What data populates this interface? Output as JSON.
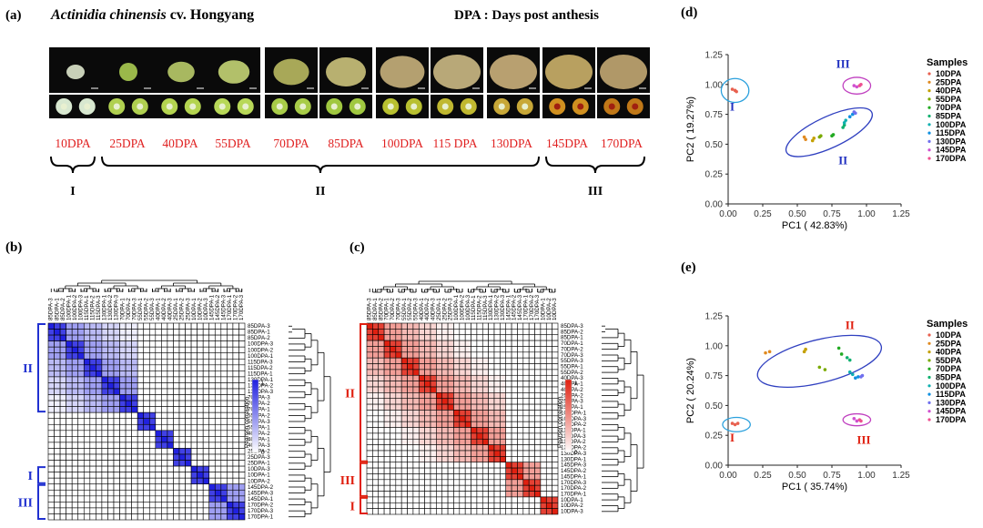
{
  "panels": {
    "a": {
      "label": "(a)",
      "title": "Actinidia chinensis",
      "cultivar": " cv. Hongyang",
      "dpa_note": "DPA : Days post anthesis",
      "stages": [
        "10DPA",
        "25DPA",
        "40DPA",
        "55DPA",
        "70DPA",
        "85DPA",
        "100DPA",
        "115 DPA",
        "130DPA",
        "145DPA",
        "170DPA"
      ],
      "groups": [
        "I",
        "II",
        "III"
      ]
    },
    "b": {
      "label": "(b)"
    },
    "c": {
      "label": "(c)"
    },
    "d": {
      "label": "(d)"
    },
    "e": {
      "label": "(e)"
    }
  },
  "heatmap_b": {
    "cols": [
      "85DPA-3",
      "85DPA-1",
      "85DPA-2",
      "100DPA-1",
      "100DPA-2",
      "100DPA-3",
      "115DPA-1",
      "115DPA-2",
      "115DPA-3",
      "130DPA-1",
      "130DPA-2",
      "130DPA-3",
      "70DPA-1",
      "70DPA-2",
      "70DPA-3",
      "55DPA-1",
      "55DPA-2",
      "55DPA-3",
      "40DPA-1",
      "40DPA-2",
      "40DPA-3",
      "25DPA-1",
      "25DPA-2",
      "25DPA-3",
      "10DPA-1",
      "10DPA-2",
      "10DPA-3",
      "145DPA-1",
      "145DPA-2",
      "145DPA-3",
      "170DPA-1",
      "170DPA-2",
      "170DPA-3"
    ],
    "rows": [
      "85DPA-3",
      "85DPA-1",
      "85DPA-2",
      "100DPA-3",
      "100DPA-2",
      "100DPA-1",
      "115DPA-3",
      "115DPA-2",
      "115DPA-1",
      "130DPA-1",
      "130DPA-2",
      "130DPA-3",
      "70DPA-3",
      "70DPA-2",
      "70DPA-1",
      "55DPA-2",
      "55DPA-3",
      "55DPA-1",
      "40DPA-2",
      "40DPA-1",
      "40DPA-3",
      "25DPA-2",
      "25DPA-3",
      "25DPA-1",
      "10DPA-3",
      "10DPA-1",
      "10DPA-2",
      "145DPA-2",
      "145DPA-3",
      "145DPA-1",
      "170DPA-2",
      "170DPA-3",
      "170DPA-1"
    ],
    "blocks": [
      [
        0,
        15,
        "II"
      ],
      [
        24,
        27,
        "I"
      ],
      [
        27,
        33,
        "III"
      ]
    ],
    "legend_title": "Pearson correlation",
    "legend_max": "1",
    "legend_min": "0",
    "color": "#2020e0"
  },
  "heatmap_c": {
    "cols": [
      "85DPA-3",
      "85DPA-1",
      "85DPA-2",
      "70DPA-1",
      "70DPA-2",
      "70DPA-3",
      "55DPA-1",
      "55DPA-2",
      "55DPA-3",
      "40DPA-1",
      "40DPA-2",
      "40DPA-3",
      "25DPA-1",
      "25DPA-2",
      "25DPA-3",
      "100DPA-1",
      "100DPA-2",
      "100DPA-3",
      "115DPA-1",
      "115DPA-2",
      "115DPA-3",
      "130DPA-1",
      "130DPA-2",
      "130DPA-3",
      "145DPA-1",
      "145DPA-2",
      "145DPA-3",
      "170DPA-1",
      "170DPA-2",
      "170DPA-3",
      "10DPA-1",
      "10DPA-2",
      "10DPA-3"
    ],
    "rows": [
      "85DPA-3",
      "85DPA-2",
      "85DPA-1",
      "70DPA-1",
      "70DPA-2",
      "70DPA-3",
      "55DPA-3",
      "55DPA-1",
      "55DPA-2",
      "40DPA-3",
      "40DPA-1",
      "40DPA-2",
      "25DPA-2",
      "25DPA-3",
      "25DPA-1",
      "100DPA-1",
      "100DPA-3",
      "100DPA-2",
      "115DPA-1",
      "115DPA-3",
      "115DPA-2",
      "130DPA-2",
      "130DPA-3",
      "130DPA-1",
      "145DPA-3",
      "145DPA-2",
      "145DPA-1",
      "170DPA-3",
      "170DPA-2",
      "170DPA-1",
      "10DPA-1",
      "10DPA-2",
      "10DPA-3"
    ],
    "blocks": [
      [
        0,
        24,
        "II"
      ],
      [
        24,
        30,
        "III"
      ],
      [
        30,
        33,
        "I"
      ]
    ],
    "legend_title": "Pearson correlation",
    "legend_max": "1",
    "legend_min": "0",
    "color": "#e02010"
  },
  "chart_data": [
    {
      "type": "scatter",
      "panel": "d",
      "xlabel": "PC1 ( 42.83%)",
      "ylabel": "PC2 ( 19.27%)",
      "xticks": [
        "0.00",
        "0.25",
        "0.50",
        "0.75",
        "1.00",
        "1.25"
      ],
      "yticks": [
        "0.00",
        "0.25",
        "0.50",
        "0.75",
        "1.00",
        "1.25"
      ],
      "xlim": [
        0,
        1.25
      ],
      "ylim": [
        0,
        1.25
      ],
      "legend_title": "Samples",
      "legend_position": "right",
      "groups_labels": [
        {
          "text": "I",
          "x": 0.03,
          "y": 0.78,
          "color": "#2030c0"
        },
        {
          "text": "II",
          "x": 0.83,
          "y": 0.33,
          "color": "#2030c0"
        },
        {
          "text": "III",
          "x": 0.83,
          "y": 1.14,
          "color": "#2030c0"
        }
      ],
      "ellipses": [
        {
          "cx": 0.05,
          "cy": 0.95,
          "rx": 0.1,
          "ry": 0.1,
          "rot": 0,
          "color": "#2aa0dd"
        },
        {
          "cx": 0.73,
          "cy": 0.6,
          "rx": 0.34,
          "ry": 0.13,
          "rot": -25,
          "color": "#3040c0"
        },
        {
          "cx": 0.93,
          "cy": 0.99,
          "rx": 0.1,
          "ry": 0.07,
          "rot": 0,
          "color": "#c040c0"
        }
      ],
      "series": [
        {
          "name": "10DPA",
          "color": "#e8604f",
          "x": [
            0.03,
            0.05,
            0.06
          ],
          "y": [
            0.96,
            0.95,
            0.94
          ]
        },
        {
          "name": "25DPA",
          "color": "#e08a20",
          "x": [
            0.55,
            0.56
          ],
          "y": [
            0.56,
            0.54
          ]
        },
        {
          "name": "40DPA",
          "color": "#c4a000",
          "x": [
            0.61,
            0.62
          ],
          "y": [
            0.53,
            0.55
          ]
        },
        {
          "name": "55DPA",
          "color": "#7aaa00",
          "x": [
            0.66,
            0.67
          ],
          "y": [
            0.56,
            0.57
          ]
        },
        {
          "name": "70DPA",
          "color": "#22aa22",
          "x": [
            0.75,
            0.76
          ],
          "y": [
            0.57,
            0.58
          ]
        },
        {
          "name": "85DPA",
          "color": "#10b070",
          "x": [
            0.83,
            0.84
          ],
          "y": [
            0.64,
            0.66
          ]
        },
        {
          "name": "100DPA",
          "color": "#10b0b0",
          "x": [
            0.84,
            0.85
          ],
          "y": [
            0.68,
            0.7
          ]
        },
        {
          "name": "115DPA",
          "color": "#1090e0",
          "x": [
            0.88,
            0.9
          ],
          "y": [
            0.73,
            0.75
          ]
        },
        {
          "name": "130DPA",
          "color": "#7070ee",
          "x": [
            0.91,
            0.92
          ],
          "y": [
            0.77,
            0.76
          ]
        },
        {
          "name": "145DPA",
          "color": "#d050d0",
          "x": [
            0.91,
            0.93
          ],
          "y": [
            0.99,
            0.98
          ]
        },
        {
          "name": "170DPA",
          "color": "#ee5090",
          "x": [
            0.95,
            0.96
          ],
          "y": [
            0.99,
            1.0
          ]
        }
      ]
    },
    {
      "type": "scatter",
      "panel": "e",
      "xlabel": "PC1 ( 35.74%)",
      "ylabel": "PC2 ( 20.24%)",
      "xticks": [
        "0.00",
        "0.25",
        "0.50",
        "0.75",
        "1.00",
        "1.25"
      ],
      "yticks": [
        "0.00",
        "0.25",
        "0.50",
        "0.75",
        "1.00",
        "1.25"
      ],
      "xlim": [
        0,
        1.25
      ],
      "ylim": [
        0,
        1.25
      ],
      "legend_title": "Samples",
      "legend_position": "right",
      "groups_labels": [
        {
          "text": "I",
          "x": 0.03,
          "y": 0.2,
          "color": "#e02010"
        },
        {
          "text": "II",
          "x": 0.88,
          "y": 1.14,
          "color": "#e02010"
        },
        {
          "text": "III",
          "x": 0.98,
          "y": 0.18,
          "color": "#e02010"
        }
      ],
      "ellipses": [
        {
          "cx": 0.06,
          "cy": 0.34,
          "rx": 0.1,
          "ry": 0.06,
          "rot": 0,
          "color": "#2aa0dd"
        },
        {
          "cx": 0.66,
          "cy": 0.87,
          "rx": 0.46,
          "ry": 0.18,
          "rot": -14,
          "color": "#3040c0"
        },
        {
          "cx": 0.93,
          "cy": 0.38,
          "rx": 0.1,
          "ry": 0.05,
          "rot": 0,
          "color": "#c040c0"
        }
      ],
      "series": [
        {
          "name": "10DPA",
          "color": "#e8604f",
          "x": [
            0.03,
            0.05,
            0.07
          ],
          "y": [
            0.35,
            0.34,
            0.35
          ]
        },
        {
          "name": "25DPA",
          "color": "#e08a20",
          "x": [
            0.27,
            0.3
          ],
          "y": [
            0.94,
            0.95
          ]
        },
        {
          "name": "40DPA",
          "color": "#c4a000",
          "x": [
            0.55,
            0.56
          ],
          "y": [
            0.95,
            0.97
          ]
        },
        {
          "name": "55DPA",
          "color": "#7aaa00",
          "x": [
            0.66,
            0.7
          ],
          "y": [
            0.82,
            0.8
          ]
        },
        {
          "name": "70DPA",
          "color": "#22aa22",
          "x": [
            0.8,
            0.82
          ],
          "y": [
            0.98,
            0.93
          ]
        },
        {
          "name": "85DPA",
          "color": "#10b070",
          "x": [
            0.86,
            0.88
          ],
          "y": [
            0.9,
            0.88
          ]
        },
        {
          "name": "100DPA",
          "color": "#10b0b0",
          "x": [
            0.88,
            0.9
          ],
          "y": [
            0.78,
            0.76
          ]
        },
        {
          "name": "115DPA",
          "color": "#1090e0",
          "x": [
            0.92,
            0.94
          ],
          "y": [
            0.73,
            0.74
          ]
        },
        {
          "name": "130DPA",
          "color": "#7070ee",
          "x": [
            0.96,
            0.97
          ],
          "y": [
            0.74,
            0.75
          ]
        },
        {
          "name": "145DPA",
          "color": "#d050d0",
          "x": [
            0.91,
            0.93
          ],
          "y": [
            0.39,
            0.37
          ]
        },
        {
          "name": "170DPA",
          "color": "#ee5090",
          "x": [
            0.95,
            0.96
          ],
          "y": [
            0.38,
            0.37
          ]
        }
      ]
    }
  ]
}
